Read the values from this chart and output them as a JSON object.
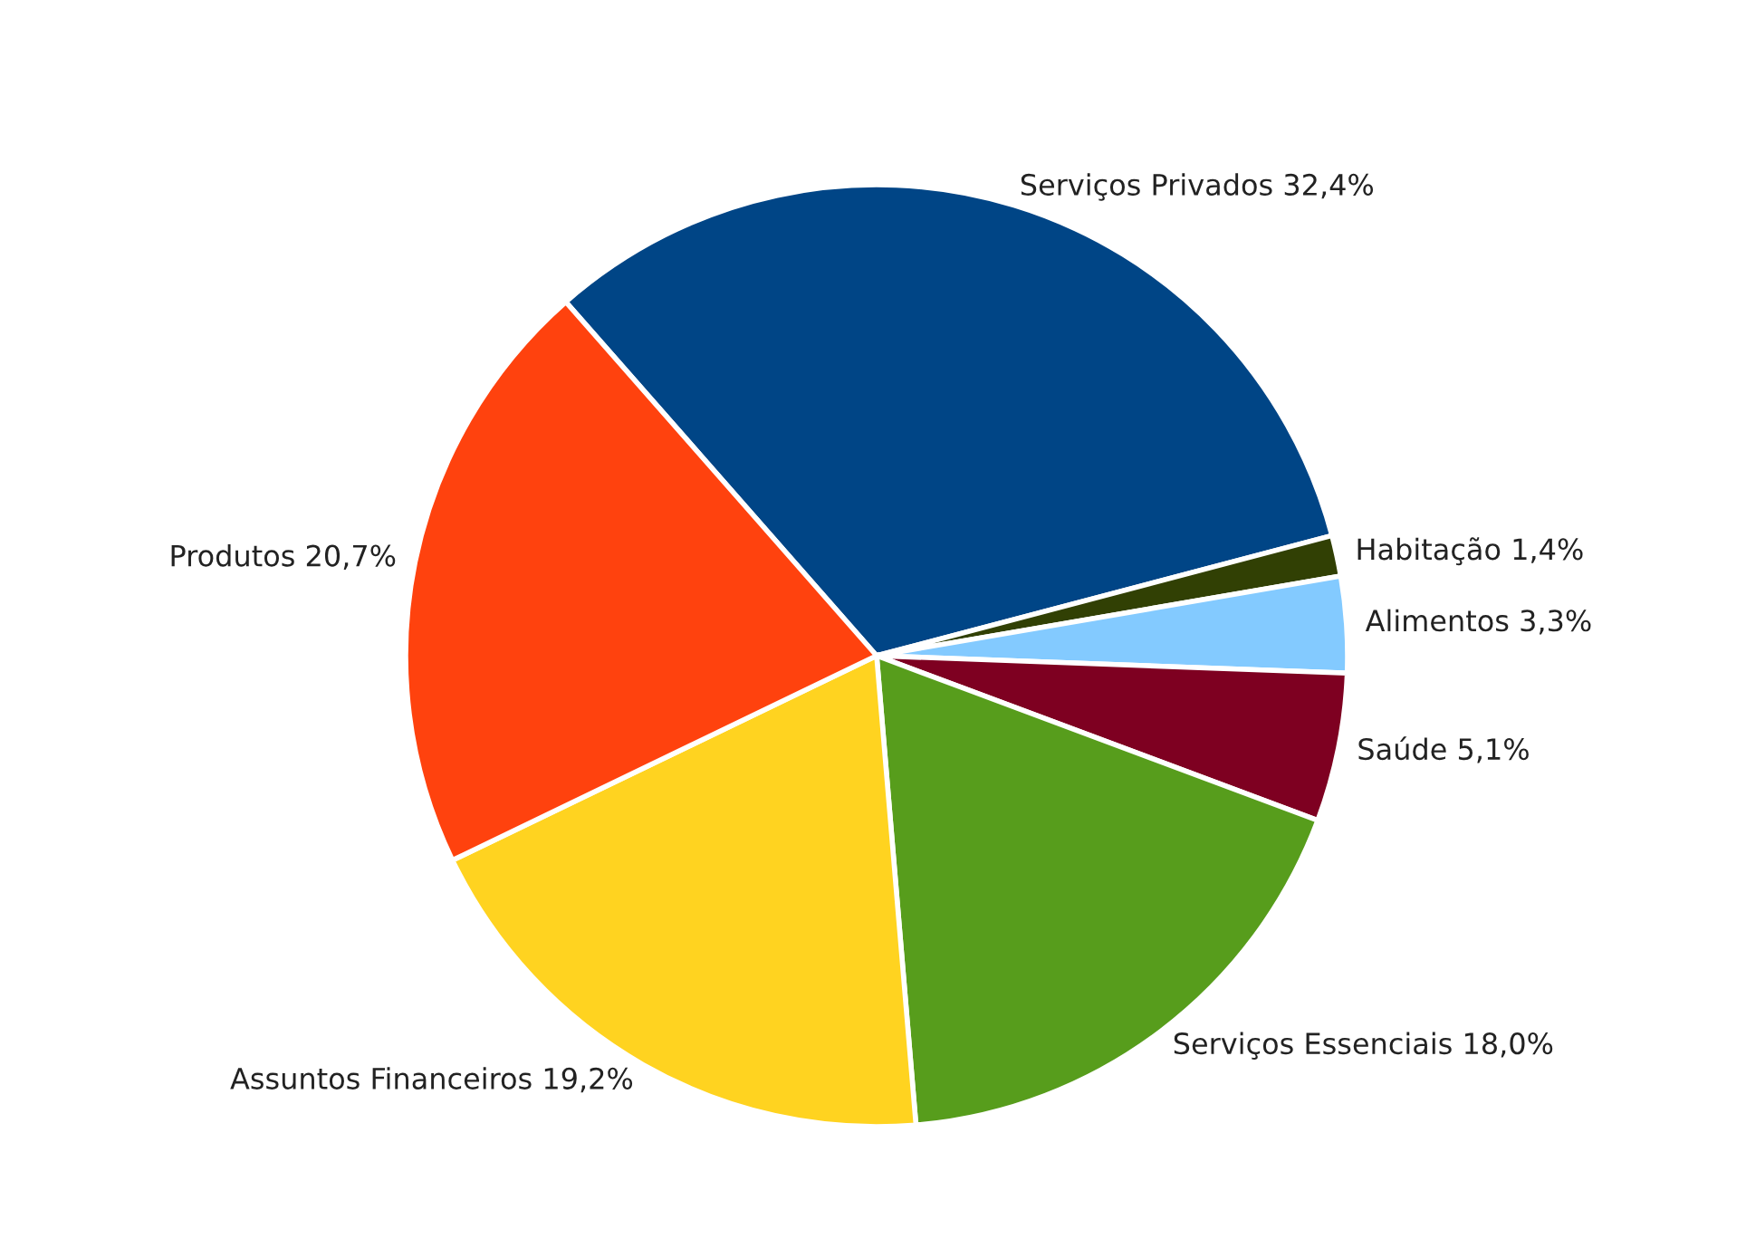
{
  "chart_data": {
    "type": "pie",
    "categories": [
      "Serviços Privados",
      "Habitação",
      "Alimentos",
      "Saúde",
      "Serviços Essenciais",
      "Assuntos Financeiros",
      "Produtos"
    ],
    "values": [
      32.4,
      1.4,
      3.3,
      5.1,
      18.0,
      19.2,
      20.7
    ],
    "value_labels": [
      "32,4%",
      "1,4%",
      "3,3%",
      "5,1%",
      "18,0%",
      "19,2%",
      "20,7%"
    ],
    "colors": [
      "#004586",
      "#314004",
      "#83caff",
      "#7e0021",
      "#579d1c",
      "#ffd320",
      "#ff420e"
    ],
    "legend": false
  }
}
